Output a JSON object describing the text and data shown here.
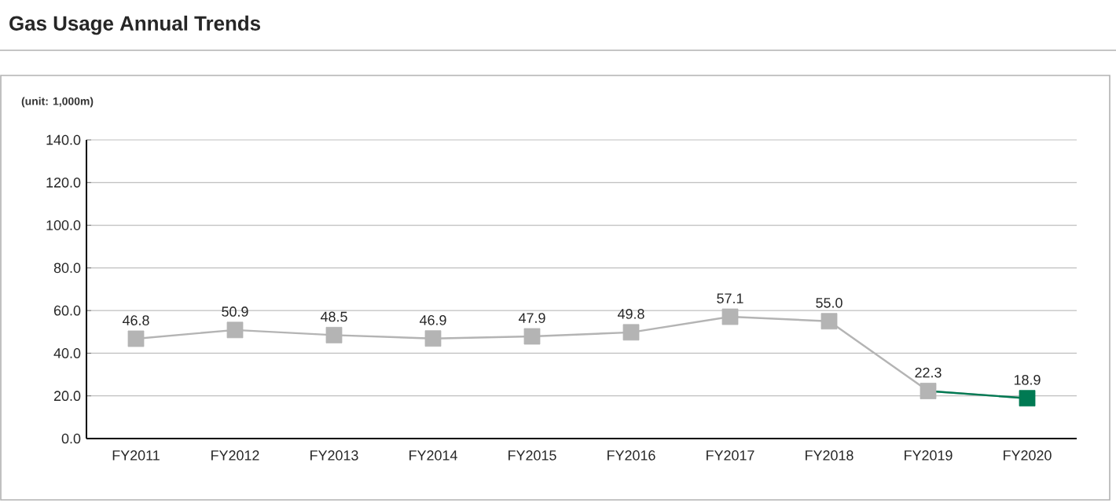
{
  "chart_data": {
    "type": "line",
    "title": "Gas Usage Annual Trends",
    "annotations": [
      "(unit: 1,000m)"
    ],
    "categories": [
      "FY2011",
      "FY2012",
      "FY2013",
      "FY2014",
      "FY2015",
      "FY2016",
      "FY2017",
      "FY2018",
      "FY2019",
      "FY2020"
    ],
    "values": [
      46.8,
      50.9,
      48.5,
      46.9,
      47.9,
      49.8,
      57.1,
      55.0,
      22.3,
      18.9
    ],
    "value_labels": [
      "46.8",
      "50.9",
      "48.5",
      "46.9",
      "47.9",
      "49.8",
      "57.1",
      "55.0",
      "22.3",
      "18.9"
    ],
    "colors": [
      "#b4b4b4",
      "#b4b4b4",
      "#b4b4b4",
      "#b4b4b4",
      "#b4b4b4",
      "#b4b4b4",
      "#b4b4b4",
      "#b4b4b4",
      "#b4b4b4",
      "#007a53"
    ],
    "ylim": [
      0,
      140
    ],
    "yticks": [
      {
        "value": 0,
        "label": "0.0"
      },
      {
        "value": 20,
        "label": "20.0"
      },
      {
        "value": 40,
        "label": "40.0"
      },
      {
        "value": 60,
        "label": "60.0"
      },
      {
        "value": 80,
        "label": "80.0"
      },
      {
        "value": 100,
        "label": "100.0"
      },
      {
        "value": 120,
        "label": "120.0"
      },
      {
        "value": 140,
        "label": "140.0"
      }
    ],
    "grid": "y",
    "marker": "square",
    "line_style": "solid"
  }
}
